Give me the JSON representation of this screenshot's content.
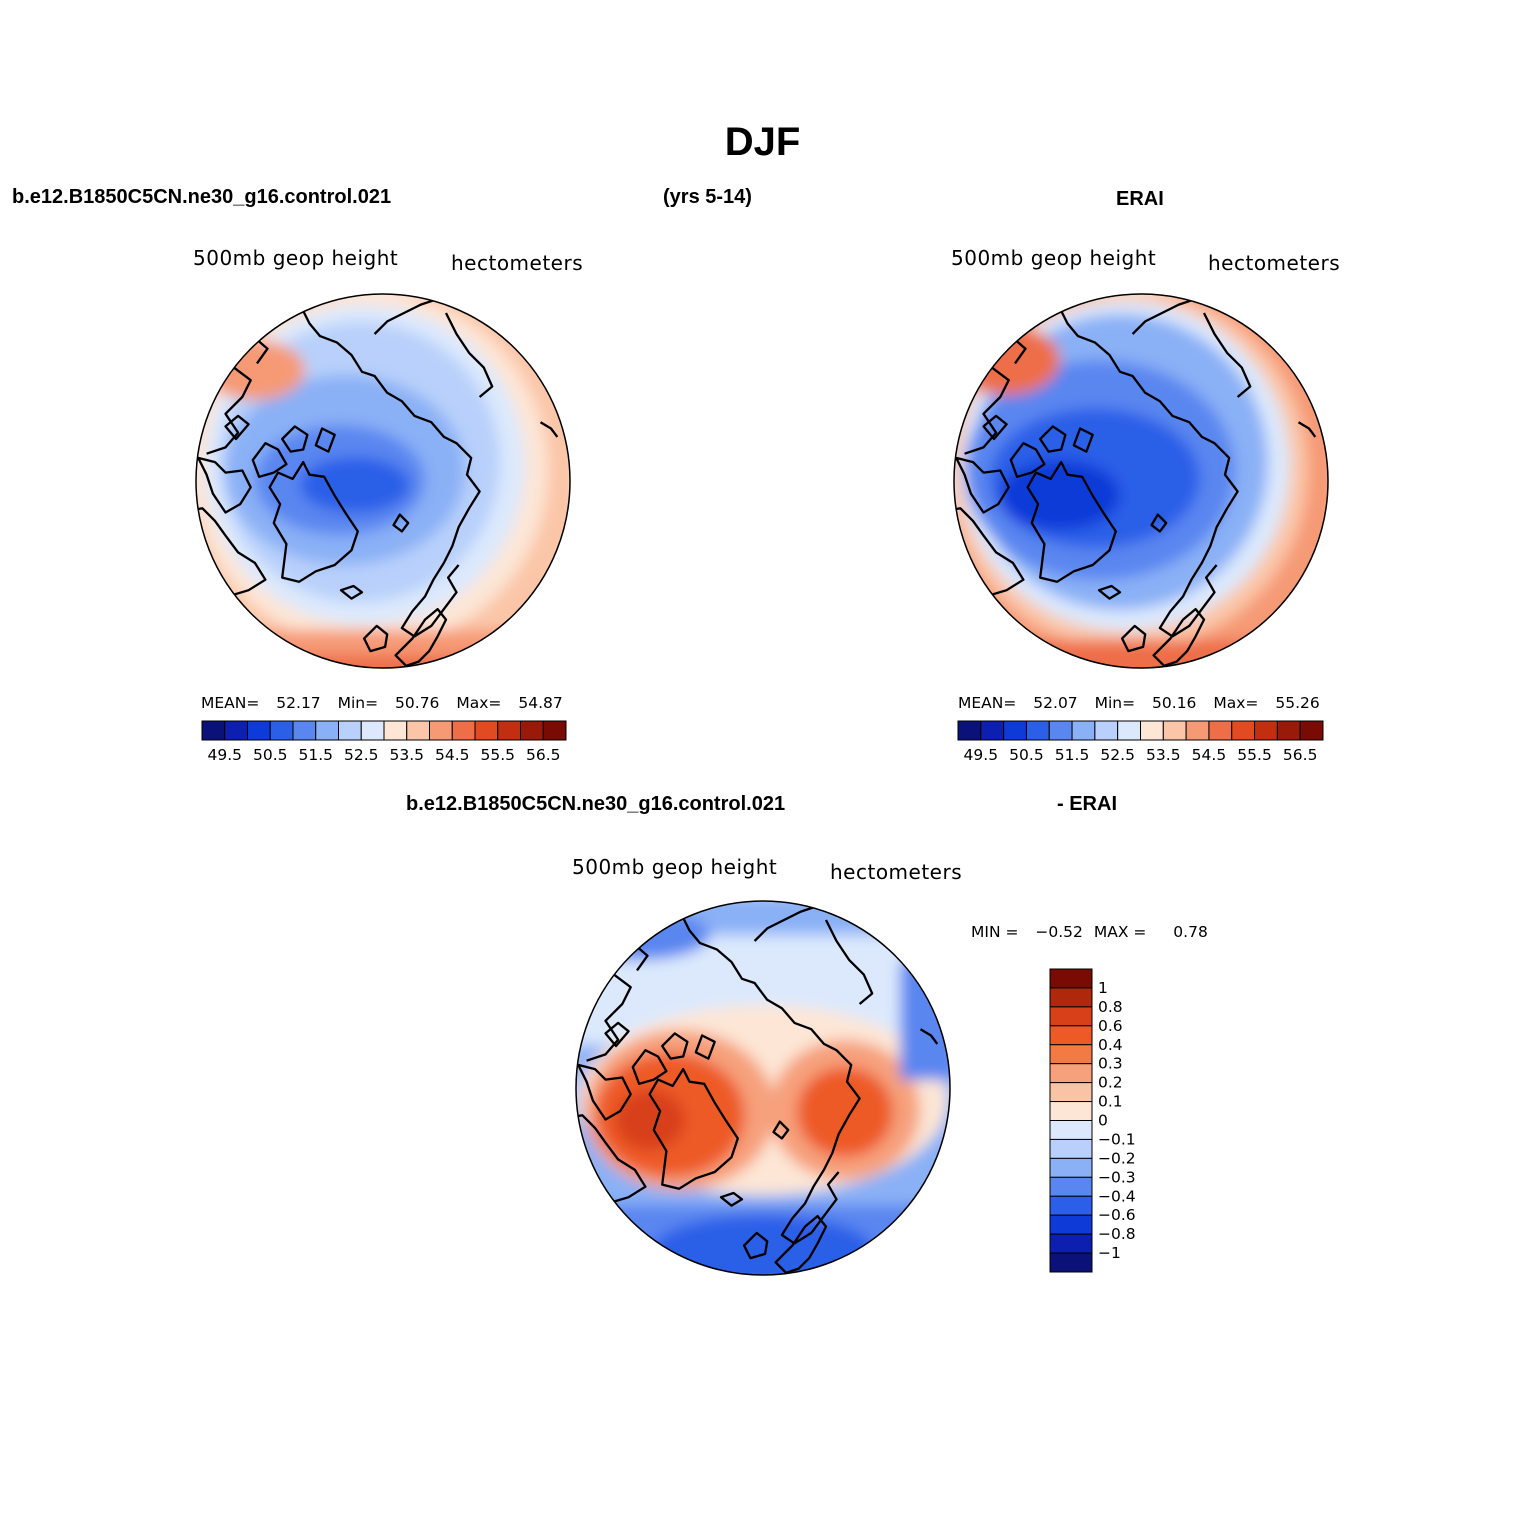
{
  "title": "DJF",
  "panels": [
    {
      "id": "model",
      "header_left": "b.e12.B1850C5CN.ne30_g16.control.021",
      "header_center": "(yrs 5-14)",
      "left_string": "500mb  geop  height",
      "right_string": "hectometers",
      "stats": {
        "mean_label": "MEAN=",
        "mean": "52.17",
        "min_label": "Min=",
        "min": "50.76",
        "max_label": "Max=",
        "max": "54.87"
      }
    },
    {
      "id": "erai",
      "header": "ERAI",
      "left_string": "500mb  geop  height",
      "right_string": "hectometers",
      "stats": {
        "mean_label": "MEAN=",
        "mean": "52.07",
        "min_label": "Min=",
        "min": "50.16",
        "max_label": "Max=",
        "max": "55.26"
      }
    },
    {
      "id": "diff",
      "header_left": "b.e12.B1850C5CN.ne30_g16.control.021",
      "header_right": "- ERAI",
      "left_string": "500mb  geop  height",
      "right_string": "hectometers",
      "stats": {
        "min_label": "MIN =",
        "min": "−0.52",
        "max_label": "MAX =",
        "max": "0.78"
      }
    }
  ],
  "abs_colorbar": {
    "labels": [
      "49.5",
      "50.5",
      "51.5",
      "52.5",
      "53.5",
      "54.5",
      "55.5",
      "56.5"
    ],
    "colors": [
      "#0a127a",
      "#0d1fb0",
      "#0e3ad8",
      "#2b5fe8",
      "#5a86f0",
      "#8ab0f6",
      "#b8d0fb",
      "#dce9fd",
      "#fde6d6",
      "#fbc6a8",
      "#f69a76",
      "#ee6e48",
      "#e24a22",
      "#c22e10",
      "#9a1a0a",
      "#7a0b04"
    ]
  },
  "diff_colorbar": {
    "labels": [
      "1",
      "0.8",
      "0.6",
      "0.4",
      "0.3",
      "0.2",
      "0.1",
      "0",
      "−0.1",
      "−0.2",
      "−0.3",
      "−0.4",
      "−0.6",
      "−0.8",
      "−1"
    ],
    "colors": [
      "#7a0b04",
      "#b0280c",
      "#d8401a",
      "#ee5a26",
      "#f47a44",
      "#f6a07c",
      "#f9c4a6",
      "#fde6d6",
      "#dce9fd",
      "#b8d0fb",
      "#8ab0f6",
      "#5a86f0",
      "#2b5fe8",
      "#0e3ad8",
      "#0d1fb0",
      "#0a127a"
    ]
  }
}
